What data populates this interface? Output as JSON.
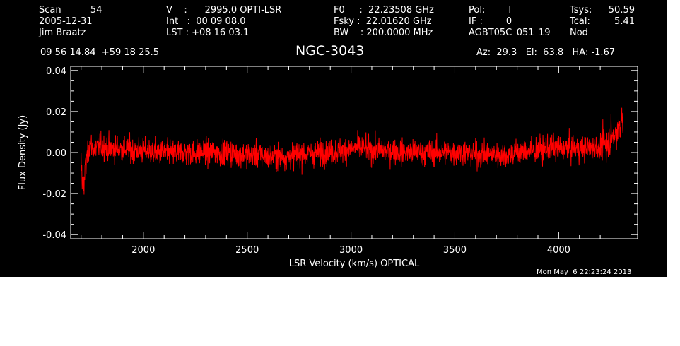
{
  "header": {
    "col1": [
      "Scan          54",
      "2005-12-31",
      "Jim Braatz"
    ],
    "col2": [
      "V    :      2995.0 OPTI-LSR",
      "Int   :  00 09 08.0",
      "LST : +08 16 03.1"
    ],
    "col3": [
      "F0     :  22.23508 GHz",
      "Fsky :  22.01620 GHz",
      "BW    : 200.0000 MHz"
    ],
    "col4": [
      "Pol:        I",
      "IF :        0",
      "AGBT05C_051_19"
    ],
    "col5_labels": [
      "Tsys:",
      "Tcal:",
      "Nod"
    ],
    "col5_values": [
      "50.59",
      "5.41"
    ],
    "coords": "09 56 14.84  +59 18 25.5",
    "source": "NGC-3043",
    "azel": "Az:  29.3   El:  63.8   HA: -1.67",
    "timestamp": "Mon May  6 22:23:24 2013"
  },
  "colors": {
    "background": "#000000",
    "axes": "#ffffff",
    "trace": "#ff0000"
  },
  "chart_data": {
    "type": "line",
    "xlabel": "LSR Velocity (km/s) OPTICAL",
    "ylabel": "Flux Density (Jy)",
    "xlim": [
      1650,
      4380
    ],
    "ylim": [
      -0.042,
      0.042
    ],
    "xticks": [
      2000,
      2500,
      3000,
      3500,
      4000
    ],
    "xtick_labels": [
      "2000",
      "2500",
      "3000",
      "3500",
      "4000"
    ],
    "yticks": [
      -0.04,
      -0.02,
      0.0,
      0.02,
      0.04
    ],
    "ytick_labels": [
      "-0.04",
      "-0.02",
      "0.00",
      "0.02",
      "0.04"
    ],
    "grid": false,
    "series": [
      {
        "x": [
          1700,
          1710,
          1720,
          1740,
          1760,
          1800,
          1850,
          1900,
          1950,
          2000,
          2050,
          2100,
          2150,
          2200,
          2250,
          2300,
          2350,
          2400,
          2450,
          2500,
          2550,
          2600,
          2650,
          2700,
          2750,
          2800,
          2850,
          2900,
          2950,
          3000,
          3050,
          3100,
          3150,
          3200,
          3250,
          3300,
          3350,
          3400,
          3450,
          3500,
          3550,
          3600,
          3650,
          3700,
          3750,
          3800,
          3850,
          3900,
          3950,
          4000,
          4050,
          4100,
          4150,
          4200,
          4220,
          4240,
          4260,
          4280,
          4300,
          4310
        ],
        "y": [
          -0.006,
          -0.018,
          -0.008,
          0.004,
          0.002,
          0.003,
          0.002,
          0.002,
          0.001,
          0.001,
          0.0,
          0.0,
          0.0,
          0.0,
          0.0,
          0.0,
          0.0,
          0.0,
          -0.001,
          -0.001,
          -0.001,
          -0.002,
          -0.002,
          -0.002,
          -0.001,
          -0.001,
          0.0,
          0.0,
          0.001,
          0.002,
          0.002,
          0.001,
          0.001,
          0.001,
          0.0,
          0.0,
          0.0,
          0.0,
          0.0,
          0.0,
          0.0,
          -0.001,
          -0.001,
          -0.001,
          -0.001,
          0.0,
          0.001,
          0.001,
          0.002,
          0.002,
          0.002,
          0.002,
          0.002,
          0.003,
          0.004,
          0.005,
          0.008,
          0.01,
          0.014,
          0.016
        ],
        "noise_amplitude_jy": 0.008,
        "channel_spacing_kms": 1.1
      }
    ]
  }
}
